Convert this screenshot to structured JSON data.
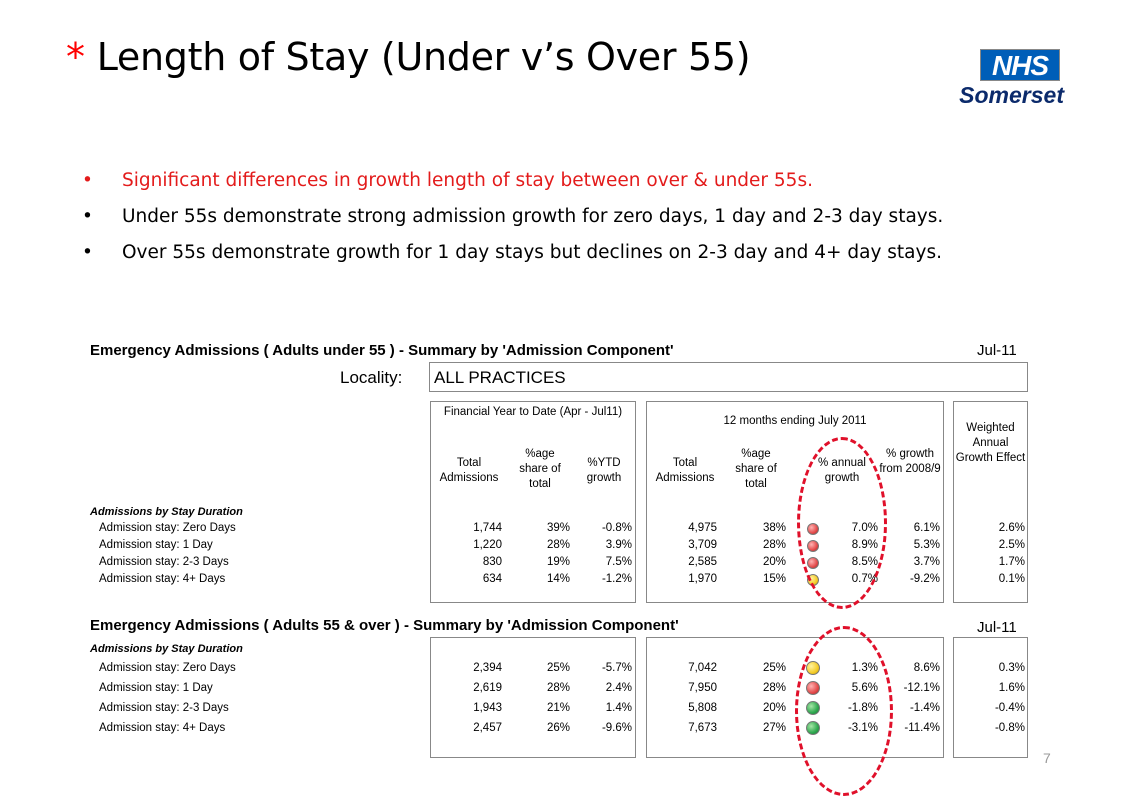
{
  "title": {
    "star": "*",
    "text": "Length of Stay (Under v’s Over 55)"
  },
  "logo": {
    "badge": "NHS",
    "org": "Somerset",
    "brand_color": "#005eb8"
  },
  "bullets": [
    {
      "text": "Significant differences in growth length of stay between over & under 55s.",
      "color": "#e31b1b"
    },
    {
      "text": "Under 55s demonstrate strong admission growth for zero days, 1 day and 2-3 day stays."
    },
    {
      "text": "Over 55s demonstrate growth for 1 day stays but declines on 2-3 day and 4+ day stays."
    }
  ],
  "table_top": {
    "heading": "Emergency Admissions ( Adults under 55 ) - Summary by 'Admission Component'",
    "period": "Jul-11",
    "locality_label": "Locality:",
    "locality_value": "ALL PRACTICES",
    "group1_title": "Financial Year to Date (Apr - Jul11)",
    "group2_title": "12 months ending July 2011",
    "col_headers": {
      "total_adm_ytd": "Total Admissions",
      "share_ytd": "%age share of total",
      "ytd_growth": "%YTD growth",
      "total_adm_12m": "Total Admissions",
      "share_12m": "%age share of total",
      "annual_growth": "% annual growth",
      "growth_2008": "% growth from 2008/9",
      "weighted": "Weighted Annual Growth Effect"
    },
    "section_label": "Admissions by Stay Duration",
    "rows": [
      {
        "label": "Admission stay: Zero Days",
        "ytd_total": "1,744",
        "ytd_share": "39%",
        "ytd_growth": "-0.8%",
        "m12_total": "4,975",
        "m12_share": "38%",
        "lamp": "red",
        "annual": "7.0%",
        "from2008": "6.1%",
        "weighted": "2.6%"
      },
      {
        "label": "Admission stay: 1 Day",
        "ytd_total": "1,220",
        "ytd_share": "28%",
        "ytd_growth": "3.9%",
        "m12_total": "3,709",
        "m12_share": "28%",
        "lamp": "red",
        "annual": "8.9%",
        "from2008": "5.3%",
        "weighted": "2.5%"
      },
      {
        "label": "Admission stay: 2-3 Days",
        "ytd_total": "830",
        "ytd_share": "19%",
        "ytd_growth": "7.5%",
        "m12_total": "2,585",
        "m12_share": "20%",
        "lamp": "red",
        "annual": "8.5%",
        "from2008": "3.7%",
        "weighted": "1.7%"
      },
      {
        "label": "Admission stay: 4+ Days",
        "ytd_total": "634",
        "ytd_share": "14%",
        "ytd_growth": "-1.2%",
        "m12_total": "1,970",
        "m12_share": "15%",
        "lamp": "amber",
        "annual": "0.7%",
        "from2008": "-9.2%",
        "weighted": "0.1%"
      }
    ]
  },
  "table_bottom": {
    "heading": "Emergency Admissions ( Adults 55 & over ) - Summary by 'Admission Component'",
    "period": "Jul-11",
    "section_label": "Admissions by Stay Duration",
    "rows": [
      {
        "label": "Admission stay: Zero Days",
        "ytd_total": "2,394",
        "ytd_share": "25%",
        "ytd_growth": "-5.7%",
        "m12_total": "7,042",
        "m12_share": "25%",
        "lamp": "amber",
        "annual": "1.3%",
        "from2008": "8.6%",
        "weighted": "0.3%"
      },
      {
        "label": "Admission stay: 1 Day",
        "ytd_total": "2,619",
        "ytd_share": "28%",
        "ytd_growth": "2.4%",
        "m12_total": "7,950",
        "m12_share": "28%",
        "lamp": "red",
        "annual": "5.6%",
        "from2008": "-12.1%",
        "weighted": "1.6%"
      },
      {
        "label": "Admission stay: 2-3 Days",
        "ytd_total": "1,943",
        "ytd_share": "21%",
        "ytd_growth": "1.4%",
        "m12_total": "5,808",
        "m12_share": "20%",
        "lamp": "green",
        "annual": "-1.8%",
        "from2008": "-1.4%",
        "weighted": "-0.4%"
      },
      {
        "label": "Admission stay: 4+ Days",
        "ytd_total": "2,457",
        "ytd_share": "26%",
        "ytd_growth": "-9.6%",
        "m12_total": "7,673",
        "m12_share": "27%",
        "lamp": "green",
        "annual": "-3.1%",
        "from2008": "-11.4%",
        "weighted": "-0.8%"
      }
    ]
  },
  "page_number": "7"
}
